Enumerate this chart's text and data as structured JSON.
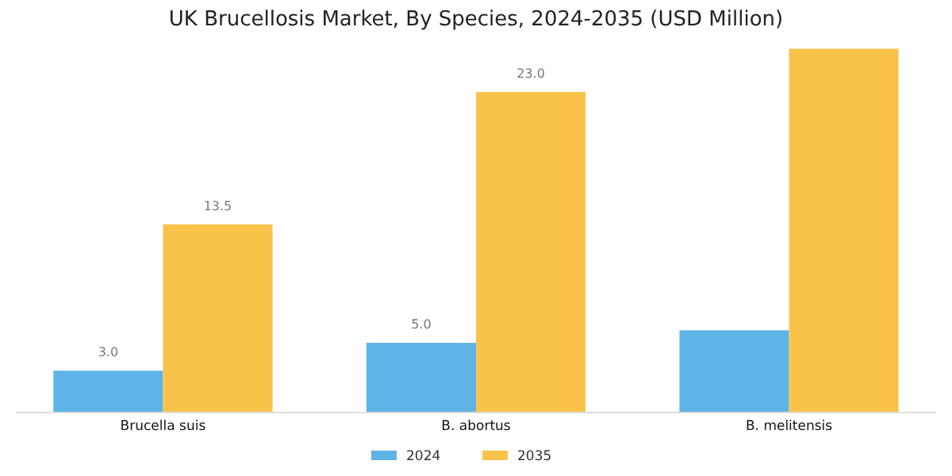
{
  "chart_data": {
    "type": "bar",
    "title": "UK Brucellosis Market, By Species, 2024-2035 (USD Million)",
    "categories": [
      "Brucella suis",
      "B. abortus",
      "B. melitensis"
    ],
    "series": [
      {
        "name": "2024",
        "color": "#5db3e6",
        "values": [
          3.0,
          5.0,
          5.9
        ],
        "value_labels": [
          "3.0",
          "5.0",
          null
        ]
      },
      {
        "name": "2035",
        "color": "#f9c34a",
        "values": [
          13.5,
          23.0,
          26.1
        ],
        "value_labels": [
          "13.5",
          "23.0",
          null
        ]
      }
    ],
    "legend": "bottom"
  }
}
